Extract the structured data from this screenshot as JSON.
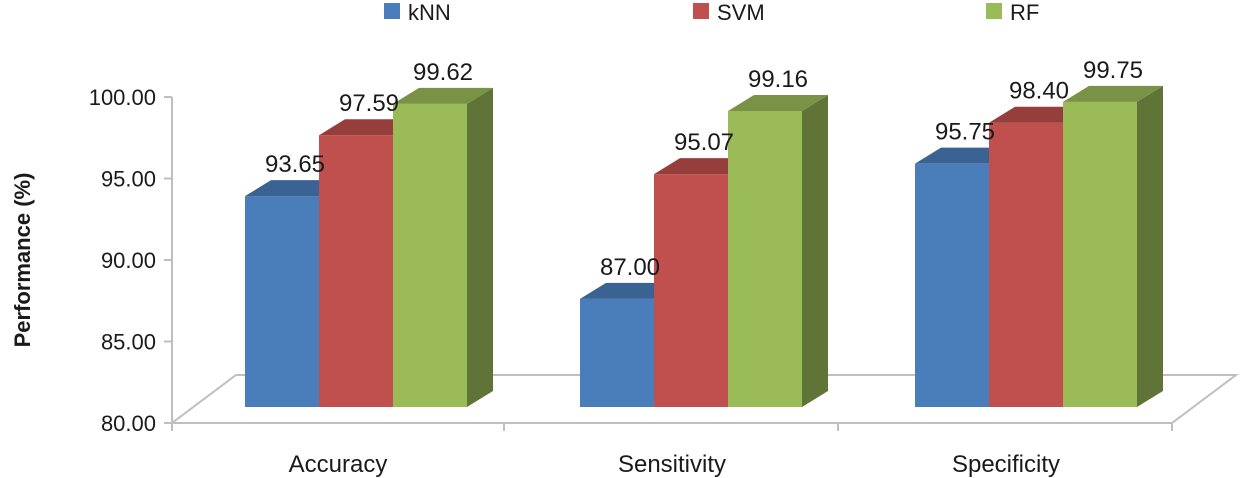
{
  "chart_data": {
    "type": "bar",
    "title": "",
    "xlabel": "",
    "ylabel": "Performance (%)",
    "ylim": [
      80,
      100
    ],
    "yticks": [
      "80.00",
      "85.00",
      "90.00",
      "95.00",
      "100.00"
    ],
    "categories": [
      "Accuracy",
      "Sensitivity",
      "Specificity"
    ],
    "series": [
      {
        "name": "kNN",
        "values": [
          93.65,
          87.0,
          95.75
        ],
        "labels": [
          "93.65",
          "87.00",
          "95.75"
        ],
        "color": "#4a7ebb"
      },
      {
        "name": "SVM",
        "values": [
          97.59,
          95.07,
          98.4
        ],
        "labels": [
          "97.59",
          "95.07",
          "98.40"
        ],
        "color": "#c0504d"
      },
      {
        "name": "RF",
        "values": [
          99.62,
          99.16,
          99.75
        ],
        "labels": [
          "99.62",
          "99.16",
          "99.75"
        ],
        "color": "#9bbb59"
      }
    ],
    "legend_position": "top",
    "grid": false,
    "style": "3d-clustered-column"
  }
}
